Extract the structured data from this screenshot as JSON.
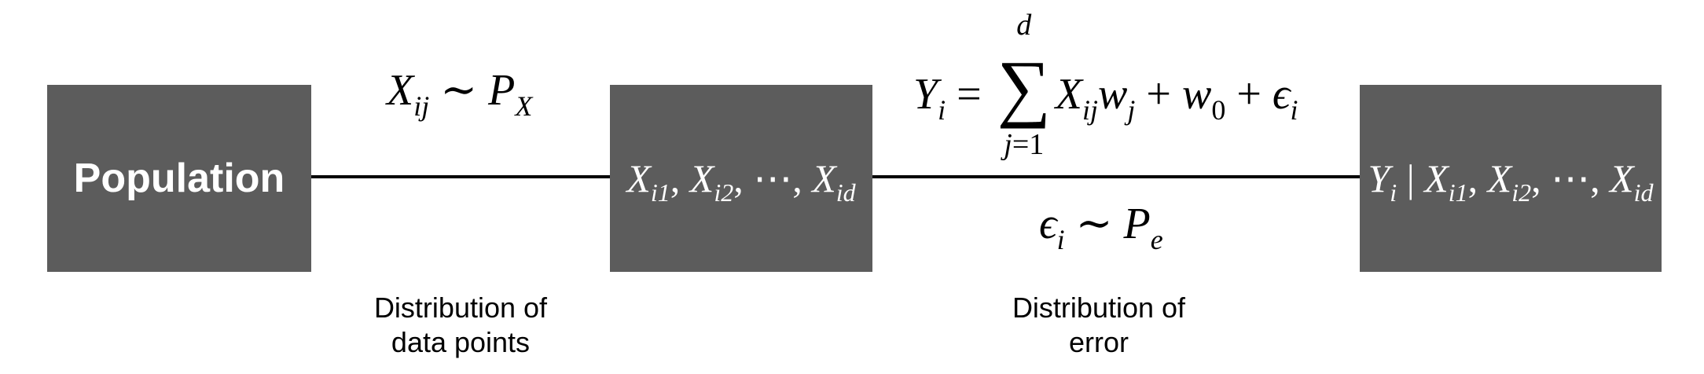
{
  "boxes": {
    "population": {
      "label": "Population"
    },
    "features": {
      "label": "X_{i1}, X_{i2}, ⋯, X_{id}"
    },
    "target": {
      "label": "Y_i | X_{i1}, X_{i2}, ⋯, X_{id}"
    }
  },
  "formulas": {
    "data_distribution": "X_{ij} ∼ P_X",
    "linear_model": "Y_i = Σ_{j=1}^{d} X_{ij} w_j + w_0 + ϵ_i",
    "error_distribution": "ϵ_i ∼ P_e"
  },
  "captions": {
    "data_points": {
      "line1": "Distribution of",
      "line2": "data points"
    },
    "error": {
      "line1": "Distribution of",
      "line2": "error"
    }
  },
  "colors": {
    "box_fill": "#5c5c5c",
    "box_text": "#ffffff",
    "line": "#000000",
    "background": "#ffffff"
  }
}
